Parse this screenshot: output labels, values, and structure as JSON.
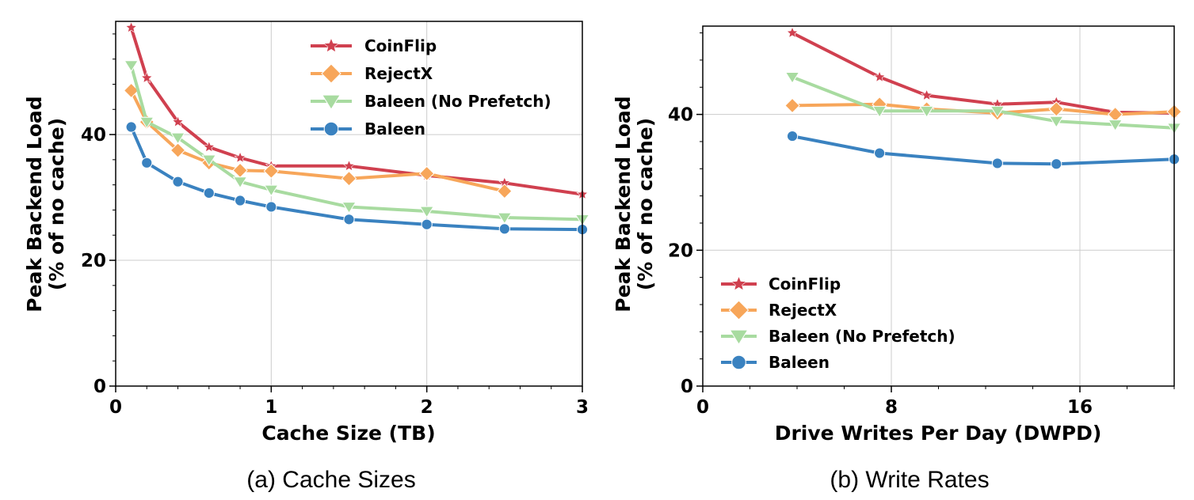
{
  "chart_data": [
    {
      "type": "line",
      "caption": "(a) Cache Sizes",
      "xlabel": "Cache Size (TB)",
      "ylabel": [
        "Peak Backend Load",
        "(% of no cache)"
      ],
      "xlim": [
        0,
        3
      ],
      "ylim": [
        0,
        58
      ],
      "xticks": [
        0,
        1,
        2,
        3
      ],
      "yticks": [
        0,
        20,
        40
      ],
      "grid": true,
      "legend_position": "upper-right",
      "series": [
        {
          "name": "CoinFlip",
          "color": "#d0404f",
          "marker": "star",
          "x": [
            0.1,
            0.2,
            0.4,
            0.6,
            0.8,
            1.0,
            1.5,
            2.0,
            2.5,
            3.0
          ],
          "y": [
            57,
            49,
            42,
            38,
            36.3,
            35,
            35,
            33.5,
            32.3,
            30.5
          ]
        },
        {
          "name": "RejectX",
          "color": "#f7a65a",
          "marker": "diamond",
          "x": [
            0.1,
            0.2,
            0.4,
            0.6,
            0.8,
            1.0,
            1.5,
            2.0,
            2.5
          ],
          "y": [
            47,
            42,
            37.5,
            35.5,
            34.3,
            34.2,
            33,
            33.8,
            31
          ]
        },
        {
          "name": "Baleen (No Prefetch)",
          "color": "#a8dba0",
          "marker": "triangle-down",
          "x": [
            0.1,
            0.2,
            0.4,
            0.6,
            0.8,
            1.0,
            1.5,
            2.0,
            2.5,
            3.0
          ],
          "y": [
            51,
            42,
            39.5,
            36,
            32.5,
            31.2,
            28.5,
            27.8,
            26.8,
            26.5
          ]
        },
        {
          "name": "Baleen",
          "color": "#3a82c0",
          "marker": "circle",
          "x": [
            0.1,
            0.2,
            0.4,
            0.6,
            0.8,
            1.0,
            1.5,
            2.0,
            2.5,
            3.0
          ],
          "y": [
            41.2,
            35.5,
            32.5,
            30.7,
            29.5,
            28.5,
            26.5,
            25.7,
            25,
            24.9
          ]
        }
      ]
    },
    {
      "type": "line",
      "caption": "(b) Write Rates",
      "xlabel": "Drive Writes Per Day (DWPD)",
      "ylabel": [
        "Peak Backend Load",
        "(% of no cache)"
      ],
      "xlim": [
        0,
        20
      ],
      "ylim": [
        0,
        53
      ],
      "xticks": [
        0,
        8,
        16
      ],
      "yticks": [
        0,
        20,
        40
      ],
      "grid": true,
      "legend_position": "lower-left",
      "series": [
        {
          "name": "CoinFlip",
          "color": "#d0404f",
          "marker": "star",
          "x": [
            3.8,
            7.5,
            9.5,
            12.5,
            15,
            17.5,
            20
          ],
          "y": [
            52,
            45.5,
            42.8,
            41.5,
            41.8,
            40.3,
            40.2
          ]
        },
        {
          "name": "RejectX",
          "color": "#f7a65a",
          "marker": "diamond",
          "x": [
            3.8,
            7.5,
            9.5,
            12.5,
            15,
            17.5,
            20
          ],
          "y": [
            41.3,
            41.5,
            40.8,
            40.2,
            40.8,
            40,
            40.4
          ]
        },
        {
          "name": "Baleen (No Prefetch)",
          "color": "#a8dba0",
          "marker": "triangle-down",
          "x": [
            3.8,
            7.5,
            9.5,
            12.5,
            15,
            17.5,
            20
          ],
          "y": [
            45.5,
            40.5,
            40.5,
            40.5,
            39,
            38.5,
            38
          ]
        },
        {
          "name": "Baleen",
          "color": "#3a82c0",
          "marker": "circle",
          "x": [
            3.8,
            7.5,
            12.5,
            15,
            20
          ],
          "y": [
            36.8,
            34.3,
            32.8,
            32.7,
            33.4
          ]
        }
      ]
    }
  ]
}
